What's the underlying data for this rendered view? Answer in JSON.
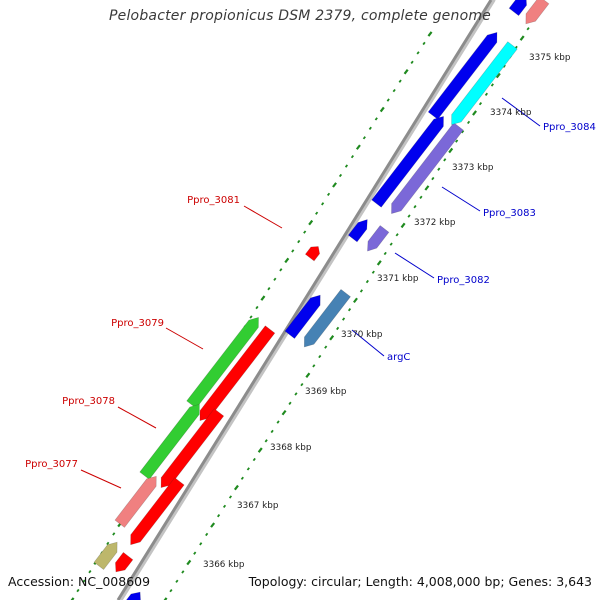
{
  "title": "Pelobacter propionicus DSM 2379, complete genome",
  "footer": {
    "accession": "Accession: NC_008609",
    "stats": "Topology: circular; Length: 4,008,000 bp; Genes: 3,643"
  },
  "ticks": [
    "3366 kbp",
    "3367 kbp",
    "3368 kbp",
    "3369 kbp",
    "3370 kbp",
    "3371 kbp",
    "3372 kbp",
    "3373 kbp",
    "3374 kbp",
    "3375 kbp"
  ],
  "gene_labels": [
    {
      "name": "Ppro_3084",
      "color": "#0000cc"
    },
    {
      "name": "Ppro_3083",
      "color": "#0000cc"
    },
    {
      "name": "Ppro_3082",
      "color": "#0000cc"
    },
    {
      "name": "argC",
      "color": "#0000cc"
    },
    {
      "name": "Ppro_3081",
      "color": "#cc0000"
    },
    {
      "name": "Ppro_3079",
      "color": "#cc0000"
    },
    {
      "name": "Ppro_3078",
      "color": "#cc0000"
    },
    {
      "name": "Ppro_3077",
      "color": "#cc0000"
    }
  ],
  "colors": {
    "backbone": "#8c8c8c",
    "dots": "#1f8a1f",
    "blue_gene": "#0000ee",
    "cyan_gene": "#00ffff",
    "purple_gene": "#7b68d8",
    "steel_gene": "#4682b4",
    "red_gene": "#ff0000",
    "pink_gene": "#f08080",
    "green_gene": "#32cd32",
    "olive_gene": "#bdb76b"
  }
}
